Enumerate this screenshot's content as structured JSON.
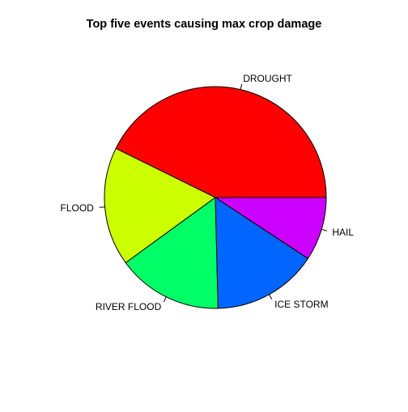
{
  "chart_data": {
    "type": "pie",
    "title": "Top five events causing max crop damage",
    "start_angle_deg": 0,
    "direction": "counterclockwise",
    "slices": [
      {
        "label": "DROUGHT",
        "value": 13.97,
        "color": "#FF0000"
      },
      {
        "label": "FLOOD",
        "value": 5.66,
        "color": "#CCFF00"
      },
      {
        "label": "RIVER FLOOD",
        "value": 5.03,
        "color": "#00FF66"
      },
      {
        "label": "ICE STORM",
        "value": 5.02,
        "color": "#0066FF"
      },
      {
        "label": "HAIL",
        "value": 3.03,
        "color": "#CC00FF"
      }
    ]
  }
}
